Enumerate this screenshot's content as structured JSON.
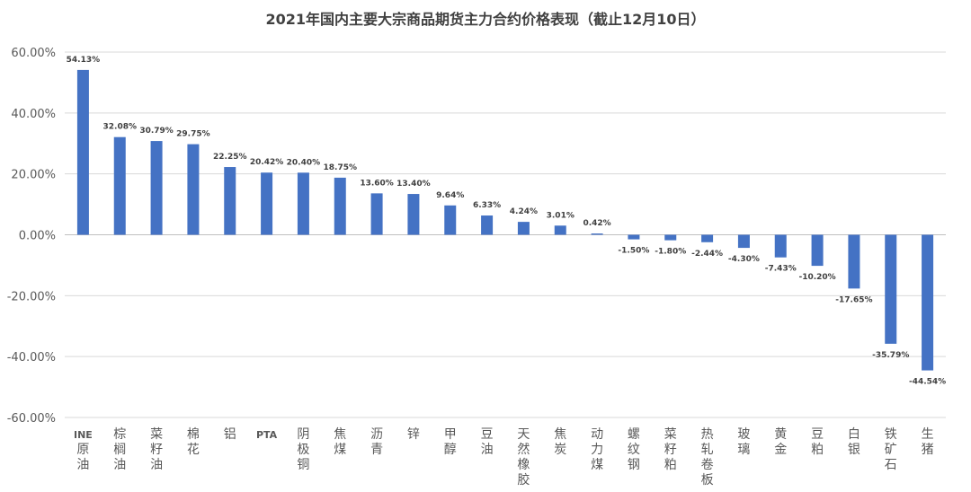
{
  "chart_data": {
    "type": "bar",
    "title": "2021年国内主要大宗商品期货主力合约价格表现（截止12月10日）",
    "xlabel": "",
    "ylabel": "",
    "ylim": [
      -60,
      60
    ],
    "yticks": [
      60,
      40,
      20,
      0,
      -20,
      -40,
      -60
    ],
    "ytick_labels": [
      "60.00%",
      "40.00%",
      "20.00%",
      "0.00%",
      "-20.00%",
      "-40.00%",
      "-60.00%"
    ],
    "grid": true,
    "legend": "none",
    "bar_color": "#4472C4",
    "categories": [
      "INE原油",
      "棕榈油",
      "菜籽油",
      "棉花",
      "铝",
      "PTA",
      "阴极铜",
      "焦煤",
      "沥青",
      "锌",
      "甲醇",
      "豆油",
      "天然橡胶",
      "焦炭",
      "动力煤",
      "螺纹钢",
      "菜籽粕",
      "热轧卷板",
      "玻璃",
      "黄金",
      "豆粕",
      "白银",
      "铁矿石",
      "生猪"
    ],
    "values": [
      54.13,
      32.08,
      30.79,
      29.75,
      22.25,
      20.42,
      20.4,
      18.75,
      13.6,
      13.4,
      9.64,
      6.33,
      4.24,
      3.01,
      0.42,
      -1.5,
      -1.8,
      -2.44,
      -4.3,
      -7.43,
      -10.2,
      -17.65,
      -35.79,
      -44.54
    ],
    "data_labels": [
      "54.13%",
      "32.08%",
      "30.79%",
      "29.75%",
      "22.25%",
      "20.42%",
      "20.40%",
      "18.75%",
      "13.60%",
      "13.40%",
      "9.64%",
      "6.33%",
      "4.24%",
      "3.01%",
      "0.42%",
      "-1.50%",
      "-1.80%",
      "-2.44%",
      "-4.30%",
      "-7.43%",
      "-10.20%",
      "-17.65%",
      "-35.79%",
      "-44.54%"
    ]
  }
}
